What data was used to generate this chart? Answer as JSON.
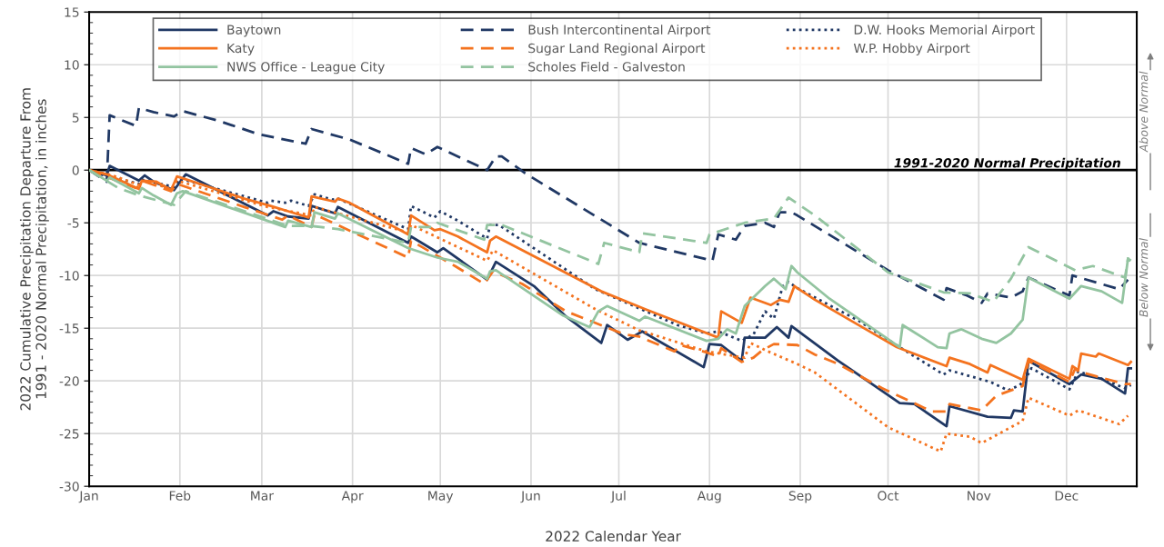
{
  "chart_data": {
    "type": "line",
    "xlabel": "2022 Calendar Year",
    "ylabel": "2022 Cumulative Precipitation Departure From\n1991 - 2020 Normal Precipitation, in inches",
    "xlim": [
      "2022-01-01",
      "2022-12-25"
    ],
    "xticks": [
      {
        "value": "2022-01-01",
        "label": "Jan"
      },
      {
        "value": "2022-02-01",
        "label": "Feb"
      },
      {
        "value": "2022-03-01",
        "label": "Mar"
      },
      {
        "value": "2022-04-01",
        "label": "Apr"
      },
      {
        "value": "2022-05-01",
        "label": "May"
      },
      {
        "value": "2022-06-01",
        "label": "Jun"
      },
      {
        "value": "2022-07-01",
        "label": "Jul"
      },
      {
        "value": "2022-08-01",
        "label": "Aug"
      },
      {
        "value": "2022-09-01",
        "label": "Sep"
      },
      {
        "value": "2022-10-01",
        "label": "Oct"
      },
      {
        "value": "2022-11-01",
        "label": "Nov"
      },
      {
        "value": "2022-12-01",
        "label": "Dec"
      }
    ],
    "ylim": [
      -30,
      15
    ],
    "yticks": [
      -30,
      -25,
      -20,
      -15,
      -10,
      -5,
      0,
      5,
      10,
      15
    ],
    "grid": true,
    "legend": "top",
    "marker": "none",
    "ref_lines": [
      {
        "axis": "y",
        "value": 0,
        "label": "1991-2020 Normal Precipitation",
        "color": "#000000"
      }
    ],
    "annotations": [
      "Above Normal",
      "Below Normal"
    ],
    "series": [
      {
        "name": "Baytown",
        "color": "#203864",
        "line_style": "solid",
        "x": [
          "2022-01-01",
          "2022-01-07",
          "2022-01-08",
          "2022-01-18",
          "2022-01-20",
          "2022-01-23",
          "2022-01-30",
          "2022-02-03",
          "2022-03-03",
          "2022-03-05",
          "2022-03-10",
          "2022-03-17",
          "2022-03-18",
          "2022-03-26",
          "2022-03-27",
          "2022-04-20",
          "2022-04-21",
          "2022-04-30",
          "2022-05-02",
          "2022-05-17",
          "2022-05-20",
          "2022-06-02",
          "2022-06-13",
          "2022-06-25",
          "2022-06-27",
          "2022-07-04",
          "2022-07-09",
          "2022-07-30",
          "2022-08-01",
          "2022-08-05",
          "2022-08-12",
          "2022-08-13",
          "2022-08-20",
          "2022-08-24",
          "2022-08-28",
          "2022-08-29",
          "2022-09-14",
          "2022-10-05",
          "2022-10-10",
          "2022-10-21",
          "2022-10-22",
          "2022-11-04",
          "2022-11-12",
          "2022-11-13",
          "2022-11-16",
          "2022-11-18",
          "2022-12-02",
          "2022-12-06",
          "2022-12-13",
          "2022-12-21",
          "2022-12-22",
          "2022-12-23"
        ],
        "values": [
          0,
          -0.5,
          0.4,
          -1.0,
          -0.5,
          -1.1,
          -1.9,
          -0.4,
          -4.3,
          -3.9,
          -4.4,
          -4.6,
          -3.4,
          -4.1,
          -3.5,
          -6.9,
          -6.3,
          -7.8,
          -7.4,
          -10.4,
          -8.7,
          -11.0,
          -13.9,
          -16.4,
          -14.7,
          -16.1,
          -15.3,
          -18.7,
          -16.5,
          -16.6,
          -18.1,
          -15.9,
          -15.9,
          -14.9,
          -15.9,
          -14.8,
          -18.1,
          -22.1,
          -22.2,
          -24.3,
          -22.4,
          -23.4,
          -23.5,
          -22.8,
          -22.9,
          -18.1,
          -20.3,
          -19.4,
          -19.8,
          -21.2,
          -18.8,
          -18.8
        ]
      },
      {
        "name": "Bush Intercontinental Airport",
        "color": "#203864",
        "line_style": "dashed",
        "x": [
          "2022-01-01",
          "2022-01-07",
          "2022-01-08",
          "2022-01-17",
          "2022-01-18",
          "2022-01-23",
          "2022-01-30",
          "2022-02-02",
          "2022-02-14",
          "2022-02-28",
          "2022-03-16",
          "2022-03-18",
          "2022-03-31",
          "2022-04-20",
          "2022-04-21",
          "2022-04-26",
          "2022-04-30",
          "2022-05-17",
          "2022-05-20",
          "2022-05-22",
          "2022-05-30",
          "2022-07-08",
          "2022-08-02",
          "2022-08-04",
          "2022-08-10",
          "2022-08-13",
          "2022-08-20",
          "2022-08-23",
          "2022-08-25",
          "2022-08-29",
          "2022-08-31",
          "2022-10-01",
          "2022-10-20",
          "2022-10-21",
          "2022-10-28",
          "2022-11-02",
          "2022-11-04",
          "2022-11-12",
          "2022-11-16",
          "2022-11-18",
          "2022-12-02",
          "2022-12-03",
          "2022-12-19",
          "2022-12-22"
        ],
        "values": [
          0,
          -1.1,
          5.2,
          4.2,
          5.9,
          5.5,
          5.1,
          5.6,
          4.7,
          3.4,
          2.5,
          3.9,
          2.9,
          0.6,
          2.1,
          1.5,
          2.2,
          0,
          1.3,
          1.3,
          -0.3,
          -6.9,
          -8.6,
          -6.1,
          -6.6,
          -5.3,
          -5.0,
          -5.4,
          -4.0,
          -4.0,
          -4.3,
          -9.5,
          -12.3,
          -11.2,
          -11.9,
          -12.6,
          -11.7,
          -12.1,
          -11.5,
          -10.2,
          -11.9,
          -10.0,
          -11.3,
          -10.4
        ]
      },
      {
        "name": "D.W. Hooks Memorial Airport",
        "color": "#203864",
        "line_style": "dotted",
        "x": [
          "2022-01-01",
          "2022-01-02",
          "2022-01-18",
          "2022-01-19",
          "2022-01-30",
          "2022-02-01",
          "2022-03-03",
          "2022-03-04",
          "2022-03-09",
          "2022-03-11",
          "2022-03-17",
          "2022-03-19",
          "2022-03-25",
          "2022-03-27",
          "2022-04-20",
          "2022-04-21",
          "2022-04-29",
          "2022-05-01",
          "2022-05-07",
          "2022-05-17",
          "2022-05-18",
          "2022-05-21",
          "2022-06-23",
          "2022-07-21",
          "2022-07-31",
          "2022-08-04",
          "2022-08-12",
          "2022-08-16",
          "2022-08-20",
          "2022-08-23",
          "2022-08-26",
          "2022-08-28",
          "2022-08-31",
          "2022-09-21",
          "2022-10-05",
          "2022-10-20",
          "2022-10-22",
          "2022-11-05",
          "2022-11-11",
          "2022-11-15",
          "2022-11-17",
          "2022-11-19",
          "2022-12-02",
          "2022-12-05",
          "2022-12-13",
          "2022-12-21",
          "2022-12-23"
        ],
        "values": [
          0,
          -0.2,
          -1.3,
          -0.9,
          -1.6,
          -0.8,
          -3.1,
          -2.9,
          -3.1,
          -2.9,
          -3.4,
          -2.3,
          -2.8,
          -2.7,
          -5.6,
          -3.4,
          -4.5,
          -3.9,
          -4.8,
          -6.5,
          -5.2,
          -5.2,
          -11.3,
          -14.7,
          -15.5,
          -15.3,
          -16.2,
          -15.6,
          -13.4,
          -14.1,
          -11.0,
          -10.6,
          -11.2,
          -14.3,
          -16.8,
          -19.4,
          -19.0,
          -20.1,
          -20.9,
          -20.4,
          -19.8,
          -18.8,
          -20.8,
          -19.1,
          -19.8,
          -20.7,
          -20.4
        ]
      },
      {
        "name": "Katy",
        "color": "#f4731f",
        "line_style": "solid",
        "x": [
          "2022-01-01",
          "2022-01-07",
          "2022-01-18",
          "2022-01-19",
          "2022-01-24",
          "2022-01-29",
          "2022-01-31",
          "2022-02-23",
          "2022-03-04",
          "2022-03-10",
          "2022-03-17",
          "2022-03-18",
          "2022-03-26",
          "2022-03-27",
          "2022-03-31",
          "2022-04-20",
          "2022-04-21",
          "2022-04-29",
          "2022-05-01",
          "2022-05-07",
          "2022-05-17",
          "2022-05-18",
          "2022-05-20",
          "2022-06-25",
          "2022-07-10",
          "2022-08-04",
          "2022-08-05",
          "2022-08-12",
          "2022-08-15",
          "2022-08-22",
          "2022-08-25",
          "2022-08-28",
          "2022-08-30",
          "2022-08-31",
          "2022-09-06",
          "2022-10-04",
          "2022-10-21",
          "2022-10-22",
          "2022-10-29",
          "2022-11-04",
          "2022-11-05",
          "2022-11-16",
          "2022-11-18",
          "2022-12-02",
          "2022-12-03",
          "2022-12-05",
          "2022-12-06",
          "2022-12-11",
          "2022-12-12",
          "2022-12-22",
          "2022-12-23"
        ],
        "values": [
          0,
          -0.4,
          -1.8,
          -1.0,
          -1.1,
          -1.9,
          -0.6,
          -2.7,
          -3.4,
          -3.9,
          -4.5,
          -2.5,
          -3.0,
          -2.7,
          -3.1,
          -6.1,
          -4.3,
          -5.7,
          -5.6,
          -6.3,
          -7.8,
          -6.7,
          -6.3,
          -11.5,
          -13.2,
          -15.9,
          -13.4,
          -14.5,
          -12.1,
          -12.8,
          -12.3,
          -12.5,
          -11.0,
          -11.2,
          -12.3,
          -16.8,
          -18.6,
          -17.8,
          -18.4,
          -19.2,
          -18.5,
          -19.9,
          -17.9,
          -19.8,
          -18.6,
          -19.0,
          -17.4,
          -17.7,
          -17.4,
          -18.5,
          -18.2
        ]
      },
      {
        "name": "Sugar Land Regional Airport",
        "color": "#f4731f",
        "line_style": "dashed",
        "x": [
          "2022-01-01",
          "2022-01-17",
          "2022-01-20",
          "2022-01-29",
          "2022-01-31",
          "2022-02-23",
          "2022-03-08",
          "2022-03-10",
          "2022-03-18",
          "2022-03-19",
          "2022-04-20",
          "2022-04-21",
          "2022-05-06",
          "2022-05-16",
          "2022-05-19",
          "2022-05-29",
          "2022-06-13",
          "2022-07-03",
          "2022-07-08",
          "2022-07-20",
          "2022-07-22",
          "2022-07-31",
          "2022-08-04",
          "2022-08-05",
          "2022-08-12",
          "2022-08-16",
          "2022-08-19",
          "2022-08-23",
          "2022-08-31",
          "2022-09-06",
          "2022-09-14",
          "2022-09-29",
          "2022-10-16",
          "2022-10-21",
          "2022-10-22",
          "2022-11-02",
          "2022-11-07",
          "2022-11-12",
          "2022-11-16",
          "2022-11-18",
          "2022-12-02",
          "2022-12-04",
          "2022-12-05",
          "2022-12-21",
          "2022-12-23"
        ],
        "values": [
          0,
          -1.7,
          -1.1,
          -2.0,
          -1.3,
          -3.5,
          -4.7,
          -4.3,
          -5.4,
          -4.2,
          -8.3,
          -6.7,
          -9.1,
          -10.8,
          -9.6,
          -10.8,
          -13.4,
          -15.6,
          -15.8,
          -17.2,
          -16.6,
          -17.3,
          -17.7,
          -16.9,
          -18.2,
          -17.8,
          -17.1,
          -16.5,
          -16.6,
          -17.5,
          -18.4,
          -20.7,
          -22.9,
          -22.9,
          -22.2,
          -22.8,
          -21.4,
          -20.9,
          -20.5,
          -18.1,
          -20.1,
          -18.8,
          -19.1,
          -20.3,
          -20.3
        ]
      },
      {
        "name": "W.P. Hobby Airport",
        "color": "#f4731f",
        "line_style": "dotted",
        "x": [
          "2022-01-01",
          "2022-01-09",
          "2022-01-18",
          "2022-01-20",
          "2022-01-29",
          "2022-01-31",
          "2022-03-03",
          "2022-03-18",
          "2022-03-19",
          "2022-04-20",
          "2022-04-21",
          "2022-05-07",
          "2022-05-17",
          "2022-05-19",
          "2022-06-23",
          "2022-07-08",
          "2022-07-31",
          "2022-08-13",
          "2022-08-15",
          "2022-08-21",
          "2022-08-31",
          "2022-09-06",
          "2022-10-01",
          "2022-10-19",
          "2022-10-21",
          "2022-10-29",
          "2022-11-02",
          "2022-11-06",
          "2022-11-12",
          "2022-11-16",
          "2022-11-18",
          "2022-12-02",
          "2022-12-05",
          "2022-12-19",
          "2022-12-22"
        ],
        "values": [
          0,
          -0.5,
          -1.4,
          -1.0,
          -1.8,
          -1.0,
          -3.5,
          -4.3,
          -3.5,
          -5.9,
          -5.2,
          -7.3,
          -8.6,
          -7.6,
          -13.2,
          -15.2,
          -17.2,
          -17.8,
          -16.4,
          -17.2,
          -18.4,
          -19.2,
          -24.4,
          -26.7,
          -25.0,
          -25.3,
          -25.9,
          -25.3,
          -24.4,
          -23.8,
          -21.6,
          -23.3,
          -22.8,
          -24.1,
          -23.3
        ]
      },
      {
        "name": "NWS Office - League City",
        "color": "#93c4a0",
        "line_style": "solid",
        "x": [
          "2022-01-01",
          "2022-01-07",
          "2022-01-08",
          "2022-01-18",
          "2022-01-19",
          "2022-01-23",
          "2022-01-29",
          "2022-01-31",
          "2022-02-02",
          "2022-03-09",
          "2022-03-10",
          "2022-03-18",
          "2022-03-19",
          "2022-03-26",
          "2022-03-27",
          "2022-04-20",
          "2022-04-30",
          "2022-05-07",
          "2022-05-17",
          "2022-05-18",
          "2022-05-20",
          "2022-06-12",
          "2022-06-21",
          "2022-06-24",
          "2022-06-27",
          "2022-07-08",
          "2022-07-10",
          "2022-07-31",
          "2022-08-04",
          "2022-08-07",
          "2022-08-10",
          "2022-08-13",
          "2022-08-20",
          "2022-08-23",
          "2022-08-27",
          "2022-08-29",
          "2022-08-31",
          "2022-09-11",
          "2022-10-05",
          "2022-10-06",
          "2022-10-18",
          "2022-10-21",
          "2022-10-22",
          "2022-10-26",
          "2022-11-02",
          "2022-11-07",
          "2022-11-12",
          "2022-11-16",
          "2022-11-18",
          "2022-12-02",
          "2022-12-06",
          "2022-12-13",
          "2022-12-20",
          "2022-12-22"
        ],
        "values": [
          0,
          -1.0,
          -0.7,
          -2.2,
          -1.7,
          -2.4,
          -3.3,
          -2.2,
          -2.0,
          -5.4,
          -4.8,
          -5.4,
          -4.0,
          -4.6,
          -4.1,
          -7.4,
          -8.3,
          -8.7,
          -10.3,
          -9.6,
          -9.5,
          -13.8,
          -14.9,
          -13.4,
          -12.9,
          -14.3,
          -13.9,
          -16.2,
          -16.0,
          -15.1,
          -15.5,
          -12.9,
          -11.0,
          -10.3,
          -11.3,
          -9.1,
          -9.7,
          -12.2,
          -16.8,
          -14.7,
          -16.8,
          -16.9,
          -15.5,
          -15.1,
          -16.0,
          -16.4,
          -15.5,
          -14.2,
          -10.2,
          -12.2,
          -11.0,
          -11.5,
          -12.6,
          -8.4
        ]
      },
      {
        "name": "Scholes Field - Galveston",
        "color": "#93c4a0",
        "line_style": "dashed",
        "x": [
          "2022-01-01",
          "2022-01-11",
          "2022-01-18",
          "2022-01-30",
          "2022-02-03",
          "2022-03-10",
          "2022-03-18",
          "2022-03-27",
          "2022-04-20",
          "2022-04-21",
          "2022-04-29",
          "2022-04-30",
          "2022-05-07",
          "2022-05-16",
          "2022-05-17",
          "2022-05-22",
          "2022-06-24",
          "2022-06-26",
          "2022-07-08",
          "2022-07-09",
          "2022-07-31",
          "2022-08-01",
          "2022-08-13",
          "2022-08-23",
          "2022-08-28",
          "2022-09-06",
          "2022-10-01",
          "2022-10-20",
          "2022-10-29",
          "2022-11-06",
          "2022-11-12",
          "2022-11-18",
          "2022-12-04",
          "2022-12-10",
          "2022-12-21",
          "2022-12-22",
          "2022-12-23"
        ],
        "values": [
          0,
          -1.7,
          -2.4,
          -3.3,
          -2.0,
          -5.3,
          -5.3,
          -5.6,
          -6.9,
          -5.4,
          -5.4,
          -5.0,
          -5.7,
          -6.6,
          -5.2,
          -5.2,
          -8.9,
          -6.9,
          -7.8,
          -6.0,
          -6.9,
          -6.1,
          -5.0,
          -4.6,
          -2.6,
          -4.3,
          -9.7,
          -11.6,
          -11.7,
          -12.5,
          -10.3,
          -7.3,
          -9.5,
          -9.1,
          -10.2,
          -8.4,
          -8.6
        ]
      }
    ]
  }
}
